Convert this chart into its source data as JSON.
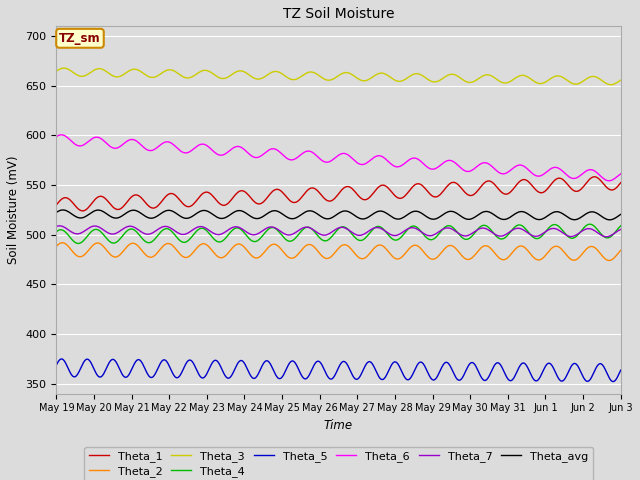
{
  "title": "TZ Soil Moisture",
  "xlabel": "Time",
  "ylabel": "Soil Moisture (mV)",
  "ylim": [
    340,
    710
  ],
  "yticks": [
    350,
    400,
    450,
    500,
    550,
    600,
    650,
    700
  ],
  "bg_color": "#dcdcdc",
  "plot_bg_color": "#dcdcdc",
  "series": [
    {
      "name": "Theta_1",
      "color": "#cc0000",
      "base": 530,
      "trend": 0.045,
      "amp": 7,
      "freq": 16,
      "phase": 0.0
    },
    {
      "name": "Theta_2",
      "color": "#ff8800",
      "base": 485,
      "trend": -0.008,
      "amp": 7,
      "freq": 16,
      "phase": 0.5
    },
    {
      "name": "Theta_3",
      "color": "#cccc00",
      "base": 664,
      "trend": -0.018,
      "amp": 4,
      "freq": 16,
      "phase": 0.2
    },
    {
      "name": "Theta_4",
      "color": "#00bb00",
      "base": 498,
      "trend": 0.012,
      "amp": 7,
      "freq": 16,
      "phase": 0.8
    },
    {
      "name": "Theta_5",
      "color": "#0000cc",
      "base": 366,
      "trend": -0.01,
      "amp": 9,
      "freq": 22,
      "phase": 0.3
    },
    {
      "name": "Theta_6",
      "color": "#ff00ff",
      "base": 596,
      "trend": -0.075,
      "amp": 5,
      "freq": 16,
      "phase": 0.6
    },
    {
      "name": "Theta_7",
      "color": "#9900cc",
      "base": 505,
      "trend": -0.006,
      "amp": 4,
      "freq": 16,
      "phase": 1.0
    },
    {
      "name": "Theta_avg",
      "color": "#000000",
      "base": 521,
      "trend": -0.004,
      "amp": 4,
      "freq": 16,
      "phase": 0.4
    }
  ],
  "legend_box": {
    "label": "TZ_sm",
    "facecolor": "#ffffcc",
    "edgecolor": "#cc8800",
    "text_color": "#880000"
  },
  "xtick_labels": [
    "May 19",
    "May 20",
    "May 21",
    "May 22",
    "May 23",
    "May 24",
    "May 25",
    "May 26",
    "May 27",
    "May 28",
    "May 29",
    "May 30",
    "May 31",
    "Jun 1",
    "Jun 2",
    "Jun 3"
  ],
  "grid_color": "#ffffff",
  "linewidth": 1.0,
  "n_points": 500
}
